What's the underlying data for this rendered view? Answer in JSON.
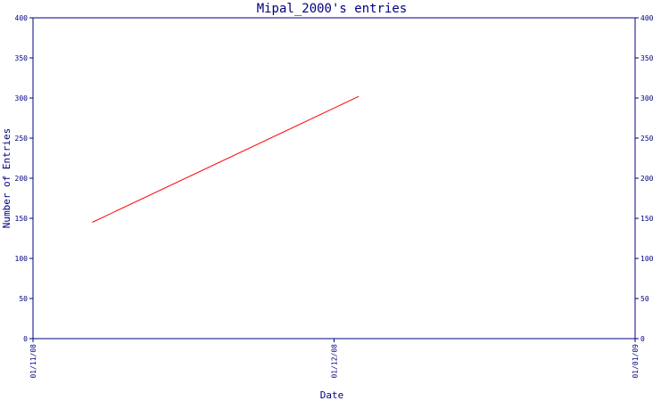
{
  "chart_data": {
    "type": "line",
    "title": "Mipal_2000's entries",
    "xlabel": "Date",
    "ylabel": "Number of Entries",
    "x_ticks": [
      "01/11/08",
      "01/12/08",
      "01/01/09"
    ],
    "y_ticks": [
      "0",
      "50",
      "100",
      "150",
      "200",
      "250",
      "300",
      "350",
      "400"
    ],
    "ylim": [
      0,
      400
    ],
    "xlim": [
      "2008-11-01",
      "2009-01-01"
    ],
    "grid": false,
    "series": [
      {
        "color": "#ff0000",
        "points": [
          {
            "x": "2008-11-07",
            "y": 145
          },
          {
            "x": "2008-12-04",
            "y": 302
          }
        ]
      }
    ],
    "colors": {
      "axis": "#000080",
      "line": "#ff0000"
    }
  }
}
